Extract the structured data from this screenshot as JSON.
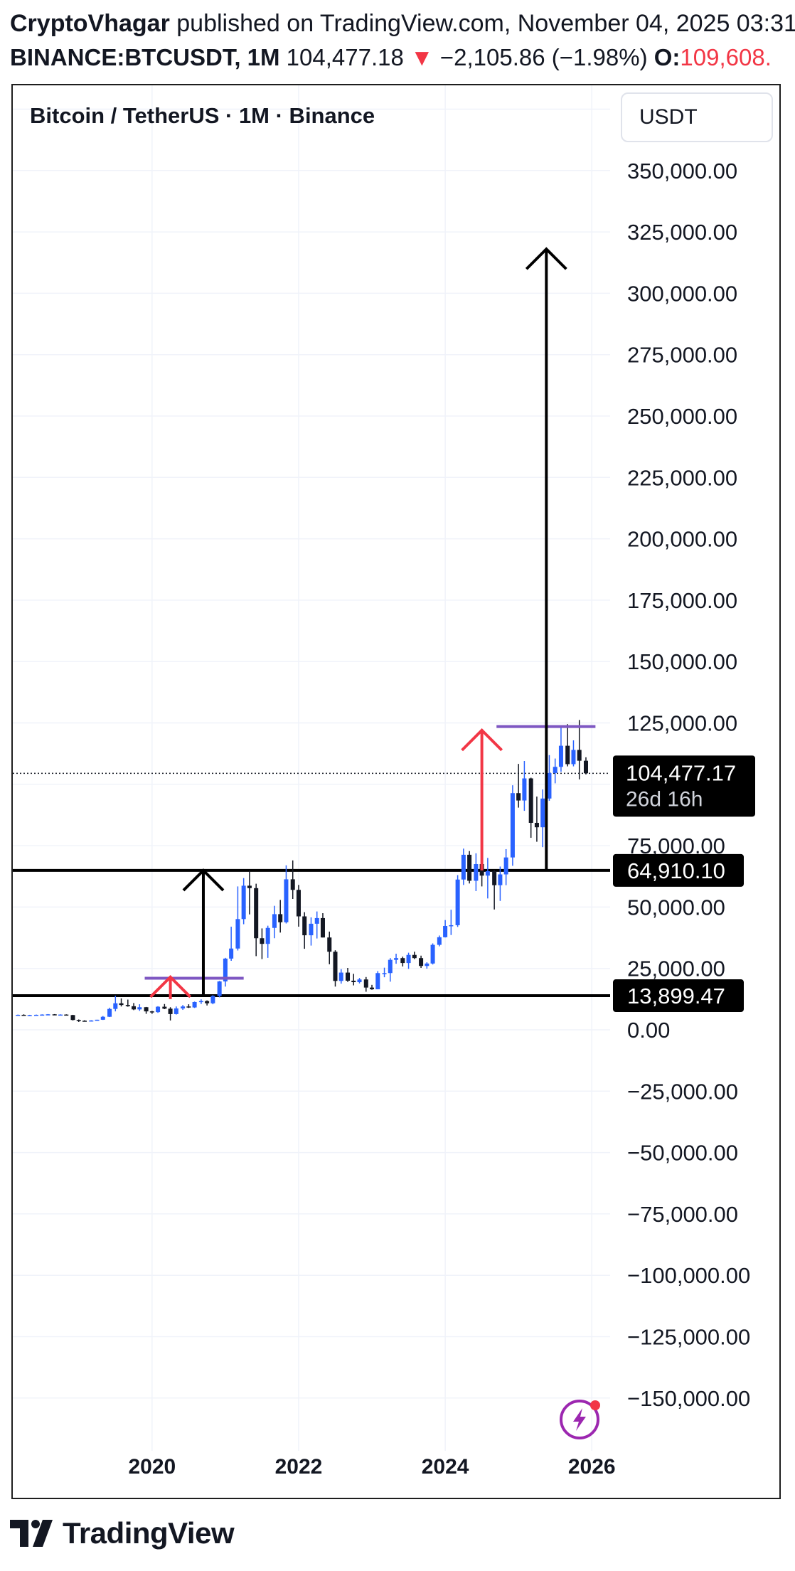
{
  "header": {
    "author": "CryptoVhagar",
    "published": " published on TradingView.com, November 04, 2025 03:31",
    "symbol": "BINANCE:BTCUSDT, 1M",
    "price": " 104,477.18",
    "arrow": " ▼",
    "change": " −2,105.86 (−1.98%)",
    "open_label": " O:",
    "open_value": "109,608."
  },
  "chart_title": "Bitcoin / TetherUS · 1M · Binance",
  "currency": "USDT",
  "footer": {
    "logo_text": "TradingView"
  },
  "colors": {
    "bull": "#2962ff",
    "bear": "#131722",
    "up_arrow_red": "#f23645",
    "level_line": "#000000",
    "resistance": "#7e57c2",
    "grid": "#f0f3fa",
    "price_badge": "#000000"
  },
  "icons": [
    "lightning-icon",
    "tradingview-logo-icon"
  ],
  "chart_data": {
    "type": "candlestick",
    "title": "Bitcoin / TetherUS · 1M · Binance",
    "ylim": [
      -175000,
      375000
    ],
    "y_ticks": [
      350000,
      325000,
      300000,
      275000,
      250000,
      225000,
      200000,
      175000,
      150000,
      125000,
      75000,
      50000,
      25000,
      0,
      -25000,
      -50000,
      -75000,
      -100000,
      -125000,
      -150000
    ],
    "y_tick_labels": [
      "350,000.00",
      "325,000.00",
      "300,000.00",
      "275,000.00",
      "250,000.00",
      "225,000.00",
      "200,000.00",
      "175,000.00",
      "150,000.00",
      "125,000.00",
      "75,000.00",
      "50,000.00",
      "25,000.00",
      "0.00",
      "−25,000.00",
      "−50,000.00",
      "−75,000.00",
      "−100,000.00",
      "−125,000.00",
      "−150,000.00"
    ],
    "x_ticks": [
      2020,
      2022,
      2024,
      2026
    ],
    "x_tick_labels": [
      "2020",
      "2022",
      "2024",
      "2026"
    ],
    "xlim": [
      2018.1,
      2026.25
    ],
    "current_price": {
      "value": 104477.17,
      "label": "104,477.17",
      "countdown": "26d 16h"
    },
    "horizontal_levels": [
      {
        "value": 64910.1,
        "label": "64,910.10",
        "x_start": 2018.1
      },
      {
        "value": 13899.47,
        "label": "13,899.47",
        "x_start": 2018.1
      }
    ],
    "resistance_lines": [
      {
        "value": 21000,
        "x_start": 2019.9,
        "x_end": 2021.25
      },
      {
        "value": 123500,
        "x_start": 2024.7,
        "x_end": 2026.05
      }
    ],
    "arrows": [
      {
        "color": "red",
        "x": 2020.25,
        "from": 12500,
        "to": 21500
      },
      {
        "color": "black",
        "x": 2020.7,
        "from": 13899,
        "to": 64910
      },
      {
        "color": "red",
        "x": 2024.5,
        "from": 64910,
        "to": 122000
      },
      {
        "color": "black",
        "x": 2025.38,
        "from": 64910,
        "to": 318000
      }
    ],
    "candles": [
      [
        2018.17,
        6000,
        6200,
        5900,
        6100
      ],
      [
        2018.25,
        6100,
        6300,
        5800,
        5900
      ],
      [
        2018.33,
        5900,
        6100,
        5700,
        6000
      ],
      [
        2018.42,
        6000,
        6200,
        5900,
        6100
      ],
      [
        2018.5,
        6100,
        6300,
        6000,
        6200
      ],
      [
        2018.58,
        6200,
        6400,
        6000,
        6300
      ],
      [
        2018.67,
        6300,
        6400,
        6000,
        6100
      ],
      [
        2018.75,
        6100,
        6300,
        6000,
        6200
      ],
      [
        2018.83,
        6200,
        6300,
        6000,
        6000
      ],
      [
        2018.92,
        6000,
        6100,
        3800,
        4000
      ],
      [
        2019.0,
        4000,
        4200,
        3200,
        3700
      ],
      [
        2019.08,
        3700,
        3900,
        3400,
        3400
      ],
      [
        2019.17,
        3400,
        3900,
        3400,
        3800
      ],
      [
        2019.25,
        3800,
        4100,
        3700,
        4100
      ],
      [
        2019.33,
        4100,
        5600,
        4000,
        5300
      ],
      [
        2019.42,
        5300,
        9000,
        5200,
        8500
      ],
      [
        2019.5,
        8500,
        13900,
        7500,
        10800
      ],
      [
        2019.58,
        10800,
        12800,
        9500,
        10100
      ],
      [
        2019.67,
        10100,
        12300,
        9400,
        9600
      ],
      [
        2019.75,
        9600,
        10900,
        8000,
        8300
      ],
      [
        2019.83,
        8300,
        10400,
        7700,
        9200
      ],
      [
        2019.92,
        9200,
        9300,
        6500,
        7500
      ],
      [
        2020.0,
        7500,
        7700,
        6500,
        7200
      ],
      [
        2020.08,
        7200,
        9600,
        6900,
        9400
      ],
      [
        2020.17,
        9400,
        10500,
        8400,
        8600
      ],
      [
        2020.25,
        8600,
        9200,
        3800,
        6400
      ],
      [
        2020.33,
        6400,
        9500,
        6200,
        8700
      ],
      [
        2020.42,
        8700,
        10100,
        8100,
        9500
      ],
      [
        2020.5,
        9500,
        10400,
        8900,
        9100
      ],
      [
        2020.58,
        9100,
        11500,
        8900,
        11300
      ],
      [
        2020.67,
        11300,
        12400,
        10500,
        11700
      ],
      [
        2020.75,
        11700,
        12000,
        9900,
        10800
      ],
      [
        2020.83,
        10800,
        14100,
        10400,
        13800
      ],
      [
        2020.92,
        13800,
        19900,
        13200,
        19700
      ],
      [
        2021.0,
        19700,
        29300,
        17600,
        29000
      ],
      [
        2021.08,
        29000,
        42000,
        28100,
        33100
      ],
      [
        2021.17,
        33100,
        58400,
        32300,
        45100
      ],
      [
        2021.25,
        45100,
        61800,
        43000,
        58700
      ],
      [
        2021.33,
        58700,
        64900,
        47000,
        57700
      ],
      [
        2021.42,
        57700,
        59500,
        30000,
        37300
      ],
      [
        2021.5,
        37300,
        41300,
        28800,
        35000
      ],
      [
        2021.58,
        35000,
        42400,
        29300,
        41500
      ],
      [
        2021.67,
        41500,
        50500,
        37300,
        47100
      ],
      [
        2021.75,
        47100,
        52900,
        39600,
        43800
      ],
      [
        2021.83,
        43800,
        67000,
        43300,
        61300
      ],
      [
        2021.92,
        61300,
        69000,
        53300,
        57000
      ],
      [
        2022.0,
        57000,
        59000,
        42000,
        46200
      ],
      [
        2022.08,
        46200,
        47900,
        33000,
        38500
      ],
      [
        2022.17,
        38500,
        45800,
        34300,
        43200
      ],
      [
        2022.25,
        43200,
        48200,
        37200,
        45500
      ],
      [
        2022.33,
        45500,
        47500,
        37600,
        37600
      ],
      [
        2022.42,
        37600,
        40000,
        26700,
        31800
      ],
      [
        2022.5,
        31800,
        32400,
        17600,
        19900
      ],
      [
        2022.58,
        19900,
        24700,
        18800,
        23300
      ],
      [
        2022.67,
        23300,
        25200,
        19500,
        20000
      ],
      [
        2022.75,
        20000,
        22800,
        18100,
        19400
      ],
      [
        2022.83,
        19400,
        21100,
        18900,
        20500
      ],
      [
        2022.92,
        20500,
        21500,
        15500,
        17200
      ],
      [
        2023.0,
        17200,
        18300,
        16300,
        16500
      ],
      [
        2023.08,
        16500,
        23900,
        16500,
        23100
      ],
      [
        2023.17,
        23100,
        25300,
        21400,
        23100
      ],
      [
        2023.25,
        23100,
        29200,
        19600,
        28500
      ],
      [
        2023.33,
        28500,
        31000,
        26900,
        29200
      ],
      [
        2023.42,
        29200,
        29800,
        25800,
        27200
      ],
      [
        2023.5,
        27200,
        31400,
        24800,
        30500
      ],
      [
        2023.58,
        30500,
        31800,
        28800,
        29200
      ],
      [
        2023.67,
        29200,
        30200,
        25200,
        26000
      ],
      [
        2023.75,
        26000,
        27500,
        24900,
        27000
      ],
      [
        2023.83,
        27000,
        35200,
        26600,
        34600
      ],
      [
        2023.92,
        34600,
        38400,
        34000,
        37700
      ],
      [
        2024.0,
        37700,
        44700,
        37600,
        42300
      ],
      [
        2024.08,
        42300,
        48900,
        38600,
        42600
      ],
      [
        2024.17,
        42600,
        63000,
        41900,
        61200
      ],
      [
        2024.25,
        61200,
        73800,
        59000,
        71300
      ],
      [
        2024.33,
        71300,
        72800,
        59600,
        60700
      ],
      [
        2024.42,
        60700,
        71900,
        56500,
        67500
      ],
      [
        2024.5,
        67500,
        71900,
        58400,
        62800
      ],
      [
        2024.58,
        62800,
        70000,
        53500,
        64600
      ],
      [
        2024.67,
        64600,
        65100,
        49000,
        58900
      ],
      [
        2024.75,
        58900,
        66500,
        52500,
        63300
      ],
      [
        2024.83,
        63300,
        73600,
        58900,
        70200
      ],
      [
        2024.92,
        70200,
        99600,
        66800,
        96400
      ],
      [
        2025.0,
        96400,
        108300,
        90500,
        93400
      ],
      [
        2025.08,
        93400,
        109500,
        89200,
        102400
      ],
      [
        2025.17,
        102400,
        102700,
        78200,
        84300
      ],
      [
        2025.25,
        84300,
        95000,
        76600,
        82500
      ],
      [
        2025.33,
        82500,
        97900,
        74400,
        94200
      ],
      [
        2025.42,
        94200,
        111900,
        93300,
        104600
      ],
      [
        2025.5,
        104600,
        110500,
        100400,
        107100
      ],
      [
        2025.58,
        107100,
        123200,
        105100,
        115700
      ],
      [
        2025.67,
        115700,
        124500,
        107300,
        108200
      ],
      [
        2025.75,
        108200,
        117900,
        107300,
        114000
      ],
      [
        2025.83,
        114000,
        126200,
        102000,
        109600
      ],
      [
        2025.92,
        109600,
        111000,
        104000,
        104477
      ]
    ]
  }
}
